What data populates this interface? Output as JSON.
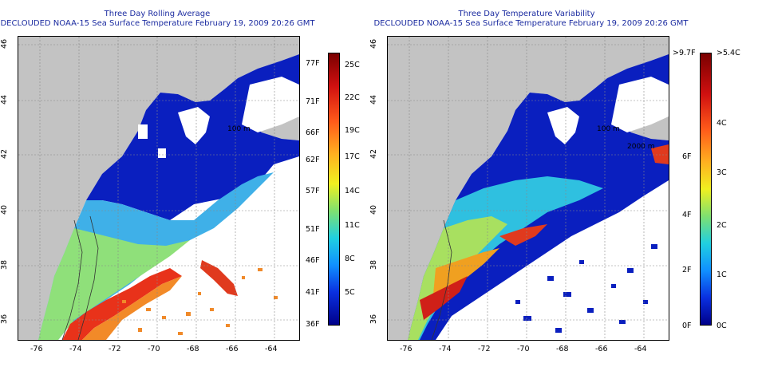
{
  "left_panel": {
    "title": "Three Day Rolling Average",
    "subtitle": "DECLOUDED NOAA-15 Sea Surface Temperature February 19, 2009 20:26 GMT",
    "colorbar": {
      "left_labels": [
        "77F",
        "71F",
        "66F",
        "62F",
        "57F",
        "51F",
        "46F",
        "41F",
        "36F"
      ],
      "right_labels": [
        "25C",
        "22C",
        "19C",
        "17C",
        "14C",
        "11C",
        "8C",
        "5C"
      ]
    },
    "contour_label": "100 m"
  },
  "right_panel": {
    "title": "Three Day Temperature Variability",
    "subtitle": "DECLOUDED NOAA-15 Sea Surface Temperature February 19, 2009 20:26 GMT",
    "colorbar": {
      "left_labels": [
        ">9.7F",
        "6F",
        "4F",
        "2F",
        "0F"
      ],
      "right_labels": [
        ">5.4C",
        "4C",
        "3C",
        "2C",
        "1C",
        "0C"
      ]
    },
    "contour_labels": [
      "100 m",
      "2000 m"
    ]
  },
  "axes": {
    "x_ticks": [
      "-76",
      "-74",
      "-72",
      "-70",
      "-68",
      "-66",
      "-64"
    ],
    "y_ticks": [
      "46",
      "44",
      "42",
      "40",
      "38",
      "36"
    ]
  },
  "colors": {
    "land": "#c3c3c3",
    "title": "#1b2ba0",
    "ocean_cold": "#0a1fbf",
    "ocean_warm": "#e8321a"
  }
}
